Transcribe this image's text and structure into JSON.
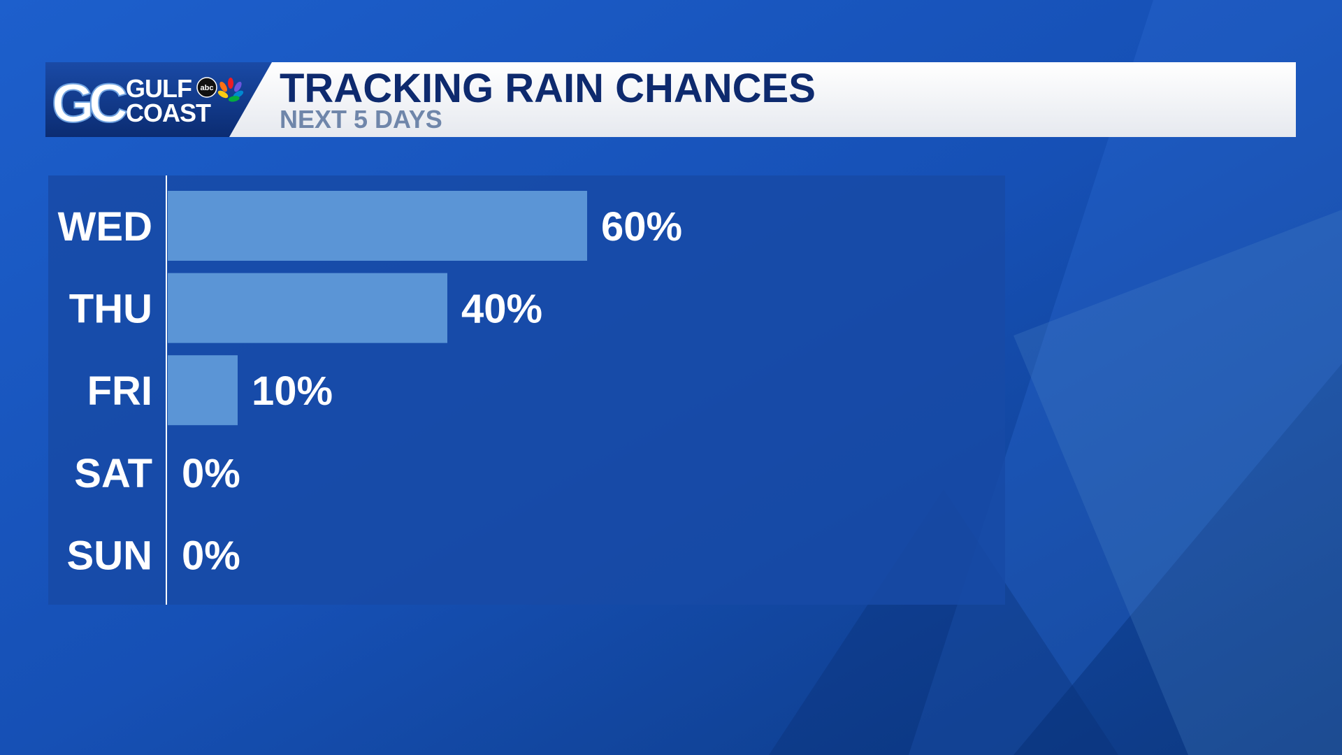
{
  "logo": {
    "mark": "GC",
    "line1": "GULF",
    "line2": "COAST",
    "network": "abc"
  },
  "chart_data": {
    "type": "bar",
    "orientation": "horizontal",
    "title": "TRACKING RAIN CHANCES",
    "subtitle": "NEXT 5 DAYS",
    "categories": [
      "WED",
      "THU",
      "FRI",
      "SAT",
      "SUN"
    ],
    "values": [
      60,
      40,
      10,
      0,
      0
    ],
    "value_labels": [
      "60%",
      "40%",
      "10%",
      "0%",
      "0%"
    ],
    "color": "#5b95d6",
    "xlim": [
      0,
      100
    ],
    "grid": false
  }
}
